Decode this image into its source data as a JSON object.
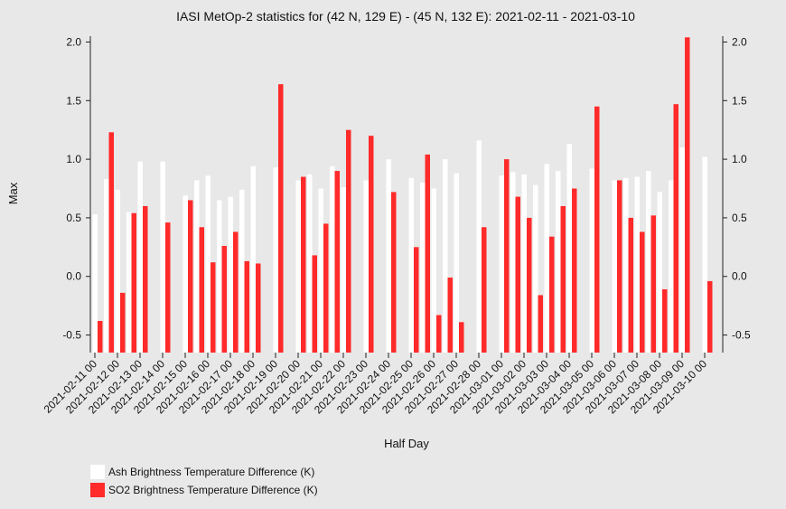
{
  "chart_data": {
    "type": "bar",
    "title": "IASI MetOp-2 statistics for (42 N, 129 E) - (45 N, 132 E): 2021-02-11 - 2021-03-10",
    "xlabel": "Half Day",
    "ylabel": "Max",
    "ylim": [
      -0.65,
      2.05
    ],
    "yticks": [
      -0.5,
      0.0,
      0.5,
      1.0,
      1.5,
      2.0
    ],
    "ytick_labels": [
      "-0.5",
      "0.0",
      "0.5",
      "1.0",
      "1.5",
      "2.0"
    ],
    "xtick_labels": [
      "2021-02-11 00",
      "2021-02-12 00",
      "2021-02-13 00",
      "2021-02-14 00",
      "2021-02-15 00",
      "2021-02-16 00",
      "2021-02-17 00",
      "2021-02-18 00",
      "2021-02-19 00",
      "2021-02-20 00",
      "2021-02-21 00",
      "2021-02-22 00",
      "2021-02-23 00",
      "2021-02-24 00",
      "2021-02-25 00",
      "2021-02-26 00",
      "2021-02-27 00",
      "2021-02-28 00",
      "2021-03-01 00",
      "2021-03-02 00",
      "2021-03-03 00",
      "2021-03-04 00",
      "2021-03-05 00",
      "2021-03-06 00",
      "2021-03-07 00",
      "2021-03-08 00",
      "2021-03-09 00",
      "2021-03-10 00"
    ],
    "grid": false,
    "legend_position": "bottom-left",
    "series": [
      {
        "name": "Ash Brightness Temperature Difference (K)",
        "color": "#ffffff",
        "values": [
          0.53,
          0.83,
          0.74,
          0.55,
          0.98,
          null,
          0.98,
          null,
          0.69,
          0.82,
          0.86,
          0.65,
          0.68,
          0.74,
          0.94,
          null,
          0.93,
          null,
          0.82,
          0.87,
          0.75,
          0.94,
          0.76,
          null,
          0.82,
          null,
          1.0,
          null,
          0.84,
          0.8,
          0.75,
          1.0,
          0.88,
          null,
          1.16,
          null,
          0.86,
          0.89,
          0.87,
          0.78,
          0.96,
          0.9,
          1.13,
          null,
          0.92,
          null,
          0.82,
          0.84,
          0.85,
          0.9,
          0.72,
          0.82,
          1.1,
          null,
          1.02,
          null
        ]
      },
      {
        "name": "SO2 Brightness Temperature Difference (K)",
        "color": "#ff2a2a",
        "values": [
          -0.38,
          1.23,
          -0.14,
          0.54,
          0.6,
          null,
          0.46,
          null,
          0.65,
          0.42,
          0.12,
          0.26,
          0.38,
          0.13,
          0.11,
          null,
          1.64,
          null,
          0.85,
          0.18,
          0.45,
          0.9,
          1.25,
          null,
          1.2,
          null,
          0.72,
          null,
          0.25,
          1.04,
          -0.33,
          -0.01,
          -0.39,
          null,
          0.42,
          null,
          1.0,
          0.68,
          0.5,
          -0.16,
          0.34,
          0.6,
          0.75,
          null,
          1.45,
          null,
          0.82,
          0.5,
          0.38,
          0.52,
          -0.11,
          1.47,
          2.04,
          null,
          -0.04,
          null
        ]
      }
    ]
  }
}
